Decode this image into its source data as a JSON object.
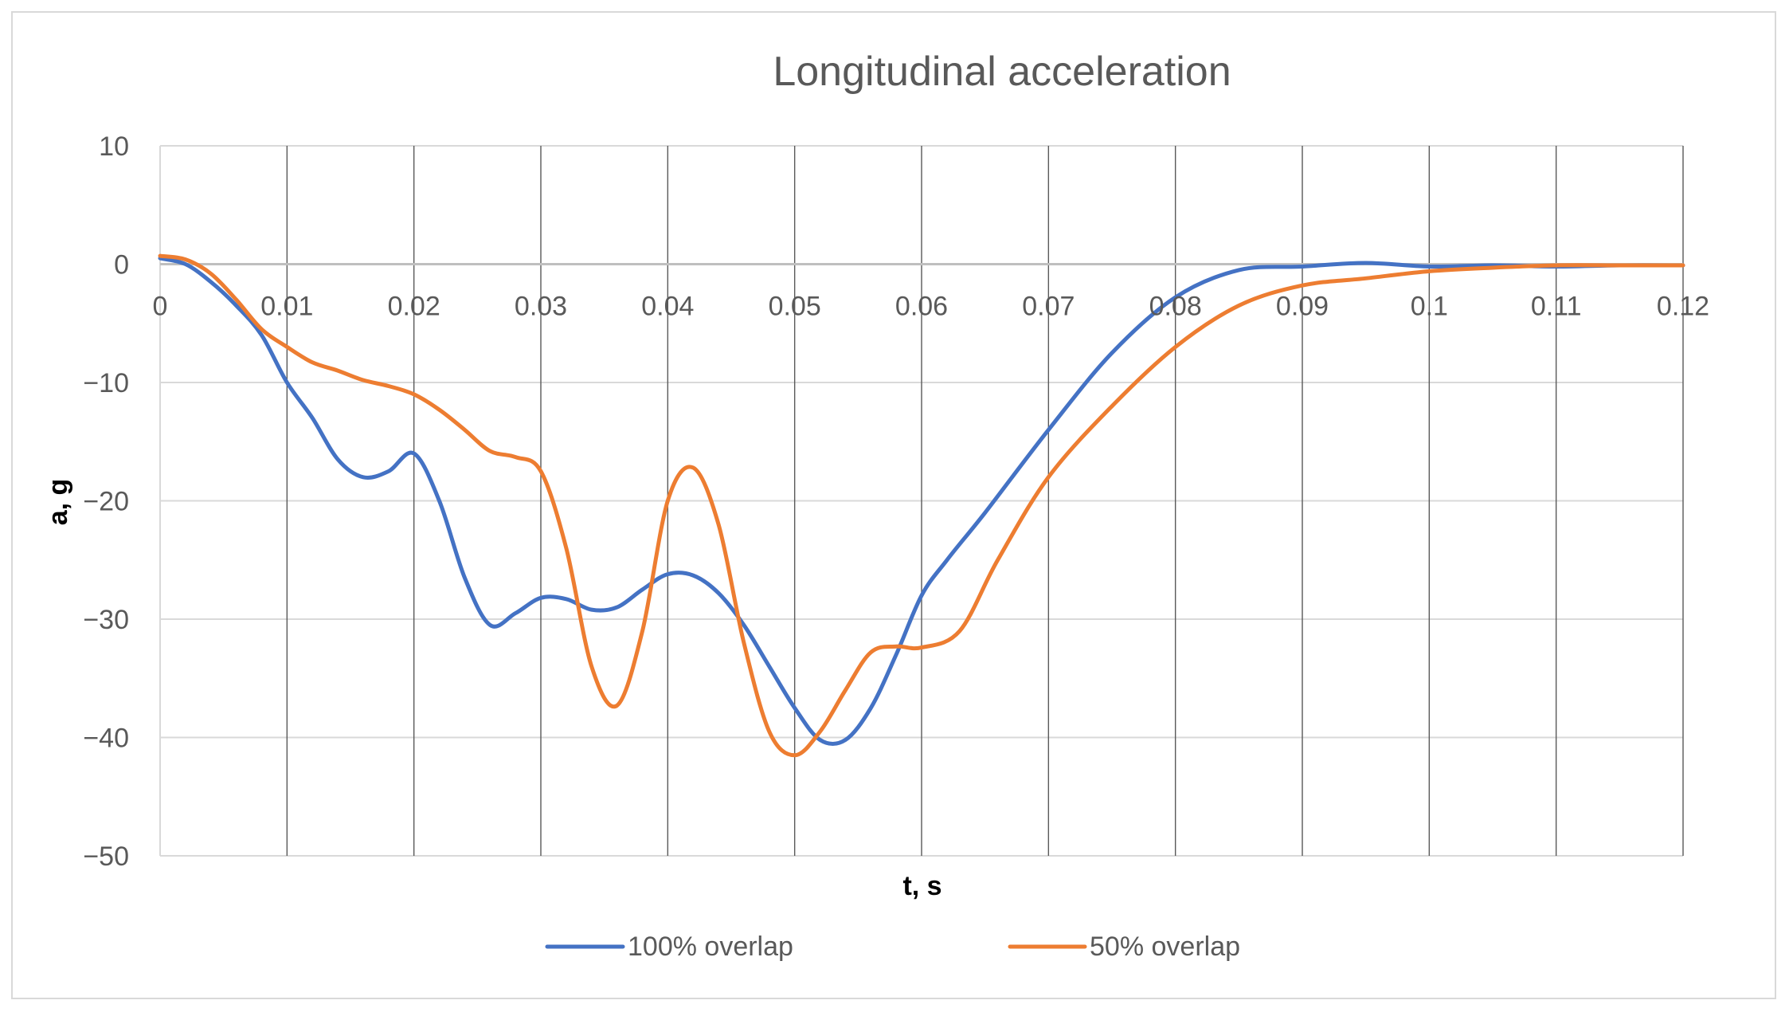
{
  "chart_data": {
    "type": "line",
    "title": "Longitudinal acceleration",
    "xlabel": "t, s",
    "ylabel": "a, g",
    "xlim": [
      0,
      0.12
    ],
    "ylim": [
      -50,
      10
    ],
    "x_ticks": [
      0,
      0.01,
      0.02,
      0.03,
      0.04,
      0.05,
      0.06,
      0.07,
      0.08,
      0.09,
      0.1,
      0.11,
      0.12
    ],
    "x_tick_labels": [
      "0",
      "0.01",
      "0.02",
      "0.03",
      "0.04",
      "0.05",
      "0.06",
      "0.07",
      "0.08",
      "0.09",
      "0.1",
      "0.11",
      "0.12"
    ],
    "y_ticks": [
      10,
      0,
      -10,
      -20,
      -30,
      -40,
      -50
    ],
    "y_tick_labels": [
      "10",
      "0",
      "−10",
      "−20",
      "−30",
      "−40",
      "−50"
    ],
    "grid": true,
    "legend_position": "bottom",
    "series": [
      {
        "name": "100% overlap",
        "color": "#4472c4",
        "x": [
          0,
          0.002,
          0.004,
          0.006,
          0.008,
          0.01,
          0.012,
          0.014,
          0.016,
          0.018,
          0.02,
          0.022,
          0.024,
          0.026,
          0.028,
          0.03,
          0.032,
          0.034,
          0.036,
          0.038,
          0.04,
          0.042,
          0.044,
          0.046,
          0.048,
          0.05,
          0.052,
          0.054,
          0.056,
          0.058,
          0.06,
          0.062,
          0.065,
          0.07,
          0.075,
          0.08,
          0.085,
          0.09,
          0.095,
          0.1,
          0.105,
          0.11,
          0.115,
          0.12
        ],
        "y": [
          0.5,
          0,
          -1.5,
          -3.5,
          -6,
          -10,
          -13,
          -16.5,
          -18,
          -17.5,
          -16,
          -20,
          -26.5,
          -30.5,
          -29.5,
          -28.2,
          -28.3,
          -29.2,
          -29,
          -27.5,
          -26.2,
          -26.3,
          -27.8,
          -30.5,
          -34,
          -37.5,
          -40.2,
          -40.2,
          -37.5,
          -33,
          -28,
          -25,
          -21,
          -14,
          -7.5,
          -2.8,
          -0.5,
          -0.2,
          0.1,
          -0.2,
          -0.1,
          -0.2,
          -0.1,
          -0.1
        ]
      },
      {
        "name": "50% overlap",
        "color": "#ed7d31",
        "x": [
          0,
          0.002,
          0.004,
          0.006,
          0.008,
          0.01,
          0.012,
          0.014,
          0.016,
          0.018,
          0.02,
          0.022,
          0.024,
          0.026,
          0.028,
          0.03,
          0.032,
          0.034,
          0.036,
          0.038,
          0.04,
          0.042,
          0.044,
          0.046,
          0.048,
          0.05,
          0.052,
          0.054,
          0.056,
          0.058,
          0.06,
          0.063,
          0.066,
          0.07,
          0.075,
          0.08,
          0.085,
          0.09,
          0.095,
          0.1,
          0.105,
          0.11,
          0.115,
          0.12
        ],
        "y": [
          0.7,
          0.4,
          -0.8,
          -3,
          -5.5,
          -7,
          -8.3,
          -9,
          -9.8,
          -10.3,
          -11,
          -12.3,
          -14,
          -15.8,
          -16.3,
          -17.5,
          -24,
          -34,
          -37.3,
          -31,
          -20,
          -17.2,
          -22,
          -32,
          -39.5,
          -41.5,
          -39.5,
          -36,
          -32.8,
          -32.3,
          -32.4,
          -31,
          -25,
          -18,
          -12,
          -7,
          -3.5,
          -1.8,
          -1.2,
          -0.6,
          -0.3,
          -0.1,
          -0.1,
          -0.1
        ]
      }
    ]
  }
}
